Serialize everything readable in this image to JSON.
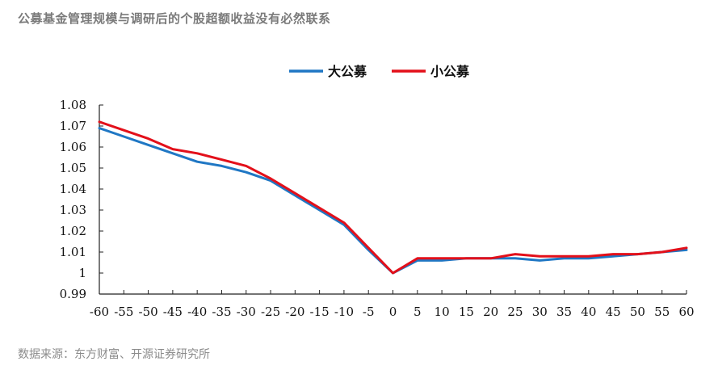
{
  "title": "公募基金管理规模与调研后的个股超额收益没有必然联系",
  "source": "数据来源：东方财富、开源证券研究所",
  "chart_data": {
    "type": "line",
    "title": "公募基金管理规模与调研后的个股超额收益没有必然联系",
    "xlabel": "",
    "ylabel": "",
    "xlim": [
      -60,
      60
    ],
    "ylim": [
      0.99,
      1.08
    ],
    "x_ticks": [
      -60,
      -55,
      -50,
      -45,
      -40,
      -35,
      -30,
      -25,
      -20,
      -15,
      -10,
      -5,
      0,
      5,
      10,
      15,
      20,
      25,
      30,
      35,
      40,
      45,
      50,
      55,
      60
    ],
    "y_ticks": [
      0.99,
      1.0,
      1.01,
      1.02,
      1.03,
      1.04,
      1.05,
      1.06,
      1.07,
      1.08
    ],
    "y_tick_labels": [
      "0.99",
      "1",
      "1.01",
      "1.02",
      "1.03",
      "1.04",
      "1.05",
      "1.06",
      "1.07",
      "1.08"
    ],
    "legend_position": "top-center",
    "grid": false,
    "x": [
      -60,
      -55,
      -50,
      -45,
      -40,
      -35,
      -30,
      -25,
      -20,
      -15,
      -10,
      -5,
      0,
      5,
      10,
      15,
      20,
      25,
      30,
      35,
      40,
      45,
      50,
      55,
      60
    ],
    "series": [
      {
        "name": "大公募",
        "color": "#1f77c4",
        "values": [
          1.069,
          1.065,
          1.061,
          1.057,
          1.053,
          1.051,
          1.048,
          1.044,
          1.037,
          1.03,
          1.023,
          1.011,
          1.0,
          1.006,
          1.006,
          1.007,
          1.007,
          1.007,
          1.006,
          1.007,
          1.007,
          1.008,
          1.009,
          1.01,
          1.011
        ]
      },
      {
        "name": "小公募",
        "color": "#e3101a",
        "values": [
          1.072,
          1.068,
          1.064,
          1.059,
          1.057,
          1.054,
          1.051,
          1.045,
          1.038,
          1.031,
          1.024,
          1.012,
          1.0,
          1.007,
          1.007,
          1.007,
          1.007,
          1.009,
          1.008,
          1.008,
          1.008,
          1.009,
          1.009,
          1.01,
          1.012
        ]
      }
    ]
  }
}
